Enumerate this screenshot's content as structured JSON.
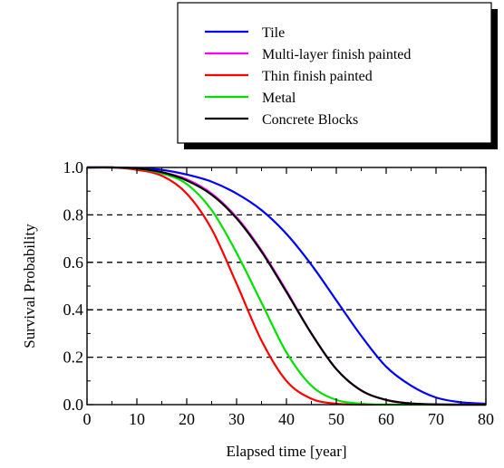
{
  "chart_data": {
    "type": "line",
    "title": "",
    "xlabel": "Elapsed time [year]",
    "ylabel": "Survival Probability",
    "xlim": [
      0,
      80
    ],
    "ylim": [
      0,
      1.0
    ],
    "x_ticks": [
      "0",
      "10",
      "20",
      "30",
      "40",
      "50",
      "60",
      "70",
      "80"
    ],
    "y_ticks": [
      "0.0",
      "0.2",
      "0.4",
      "0.6",
      "0.8",
      "1.0"
    ],
    "grid": "dashed horizontal lines at 0.2, 0.4, 0.6, 0.8",
    "legend_position": "top-right, outside plot with drop shadow",
    "x": [
      0,
      5,
      10,
      15,
      20,
      25,
      30,
      35,
      40,
      45,
      50,
      55,
      60,
      65,
      70,
      75,
      80
    ],
    "series": [
      {
        "name": "Tile",
        "color": "#0000ff",
        "values": [
          1.0,
          1.0,
          0.998,
          0.99,
          0.97,
          0.94,
          0.89,
          0.82,
          0.72,
          0.59,
          0.44,
          0.29,
          0.16,
          0.08,
          0.03,
          0.01,
          0.004
        ]
      },
      {
        "name": "Multi-layer finish painted",
        "color": "#ff00ff",
        "values": [
          1.0,
          1.0,
          0.996,
          0.98,
          0.95,
          0.89,
          0.79,
          0.65,
          0.48,
          0.3,
          0.15,
          0.06,
          0.02,
          0.005,
          0.001,
          0.0,
          0.0
        ]
      },
      {
        "name": "Thin finish painted",
        "color": "#ff0000",
        "values": [
          1.0,
          1.0,
          0.99,
          0.965,
          0.89,
          0.74,
          0.51,
          0.27,
          0.1,
          0.025,
          0.004,
          0.0,
          0.0,
          0.0,
          0.0,
          0.0,
          0.0
        ]
      },
      {
        "name": "Metal",
        "color": "#00e000",
        "values": [
          1.0,
          1.0,
          0.995,
          0.975,
          0.93,
          0.82,
          0.64,
          0.43,
          0.22,
          0.08,
          0.02,
          0.004,
          0.0,
          0.0,
          0.0,
          0.0,
          0.0
        ]
      },
      {
        "name": "Concrete Blocks",
        "color": "#000000",
        "values": [
          1.0,
          1.0,
          0.996,
          0.98,
          0.945,
          0.885,
          0.785,
          0.645,
          0.475,
          0.3,
          0.15,
          0.06,
          0.02,
          0.005,
          0.001,
          0.0,
          0.0
        ]
      }
    ]
  }
}
